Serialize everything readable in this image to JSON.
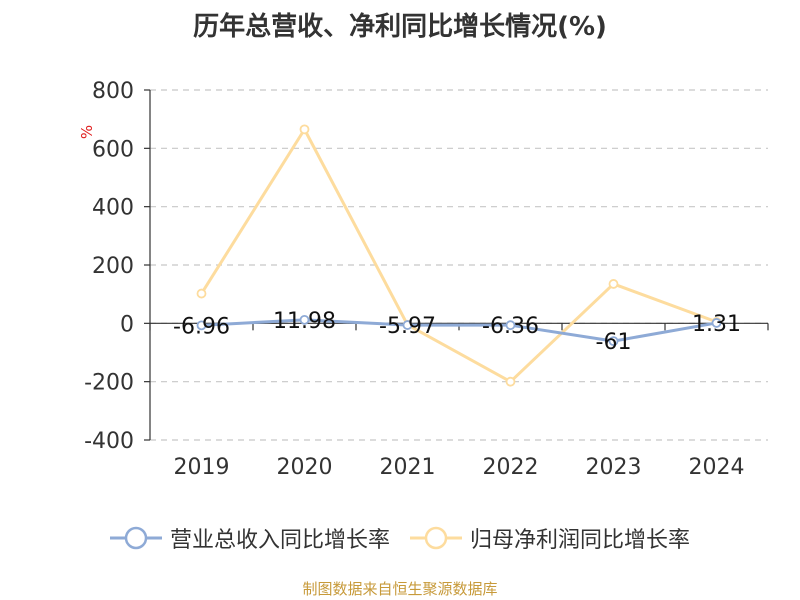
{
  "title": "历年总营收、净利同比增长情况(%)",
  "source_note": "制图数据来自恒生聚源数据库",
  "chart_data": {
    "type": "line",
    "title": "历年总营收、净利同比增长情况(%)",
    "ylabel": "%",
    "xlabel": "",
    "categories": [
      "2019",
      "2020",
      "2021",
      "2022",
      "2023",
      "2024"
    ],
    "ylim": [
      -400,
      800
    ],
    "yticks": [
      800,
      600,
      400,
      200,
      0,
      -200,
      -400
    ],
    "grid": true,
    "legend_position": "bottom",
    "series": [
      {
        "name": "营业总收入同比增长率",
        "values": [
          -6.96,
          11.98,
          -5.97,
          -6.36,
          -61,
          1.31
        ],
        "labels": [
          "-6.96",
          "11.98",
          "-5.97",
          "-6.36",
          "-61",
          "1.31"
        ],
        "color": "#8eaad6"
      },
      {
        "name": "归母净利润同比增长率",
        "values": [
          102,
          665,
          -5,
          -200,
          135,
          5
        ],
        "color": "#fddc9e"
      }
    ]
  }
}
